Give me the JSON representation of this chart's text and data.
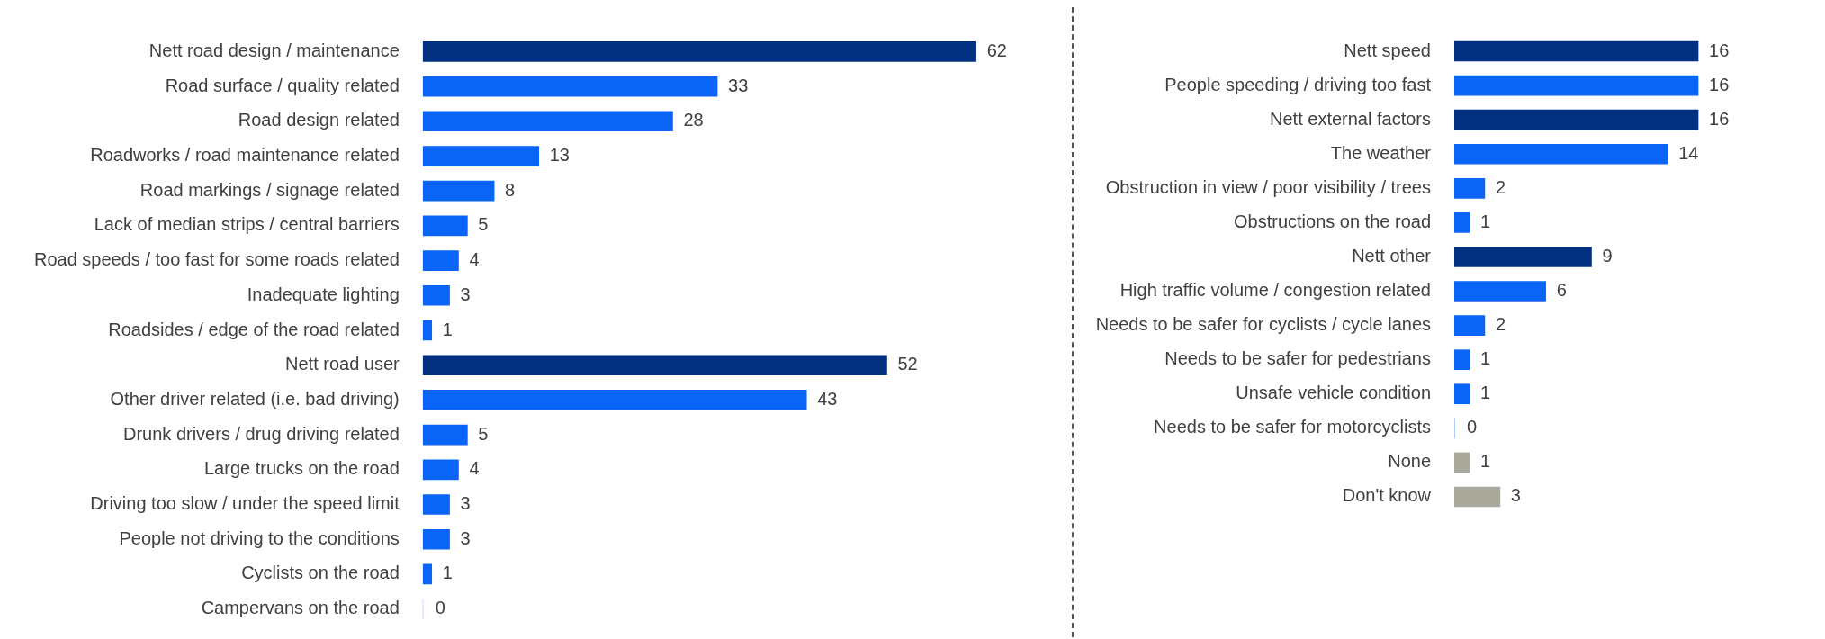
{
  "chart_data": [
    {
      "type": "bar",
      "orientation": "horizontal",
      "data_labels": true,
      "categories": [
        "Nett road design / maintenance",
        "Road surface / quality related",
        "Road design related",
        "Roadworks / road maintenance related",
        "Road markings / signage related",
        "Lack of median strips / central barriers",
        "Road speeds / too fast for some roads related",
        "Inadequate lighting",
        "Roadsides / edge of the road related",
        "Nett road user",
        "Other driver related (i.e. bad driving)",
        "Drunk drivers / drug driving related",
        "Large trucks on the road",
        "Driving too slow / under the speed limit",
        "People not driving to the conditions",
        "Cyclists on the road",
        "Campervans on the road"
      ],
      "values": [
        62,
        33,
        28,
        13,
        8,
        5,
        4,
        3,
        1,
        52,
        43,
        5,
        4,
        3,
        3,
        1,
        0
      ],
      "colors": [
        "#00307f",
        "#0a64f5",
        "#0a64f5",
        "#0a64f5",
        "#0a64f5",
        "#0a64f5",
        "#0a64f5",
        "#0a64f5",
        "#0a64f5",
        "#00307f",
        "#0a64f5",
        "#0a64f5",
        "#0a64f5",
        "#0a64f5",
        "#0a64f5",
        "#0a64f5",
        "#0a64f5"
      ]
    },
    {
      "type": "bar",
      "orientation": "horizontal",
      "data_labels": true,
      "categories": [
        "Nett speed",
        "People speeding / driving too fast",
        "Nett external factors",
        "The weather",
        "Obstruction in view / poor visibility / trees",
        "Obstructions on the road",
        "Nett other",
        "High traffic volume / congestion related",
        "Needs to be safer for cyclists / cycle lanes",
        "Needs to be safer for pedestrians",
        "Unsafe vehicle condition",
        "Needs to be safer for motorcyclists",
        "None",
        "Don't know"
      ],
      "values": [
        16,
        16,
        16,
        14,
        2,
        1,
        9,
        6,
        2,
        1,
        1,
        0,
        1,
        3
      ],
      "colors": [
        "#00307f",
        "#0a64f5",
        "#00307f",
        "#0a64f5",
        "#0a64f5",
        "#0a64f5",
        "#00307f",
        "#0a64f5",
        "#0a64f5",
        "#0a64f5",
        "#0a64f5",
        "#0a64f5",
        "#a9aa9b",
        "#a9aa9b"
      ]
    }
  ]
}
